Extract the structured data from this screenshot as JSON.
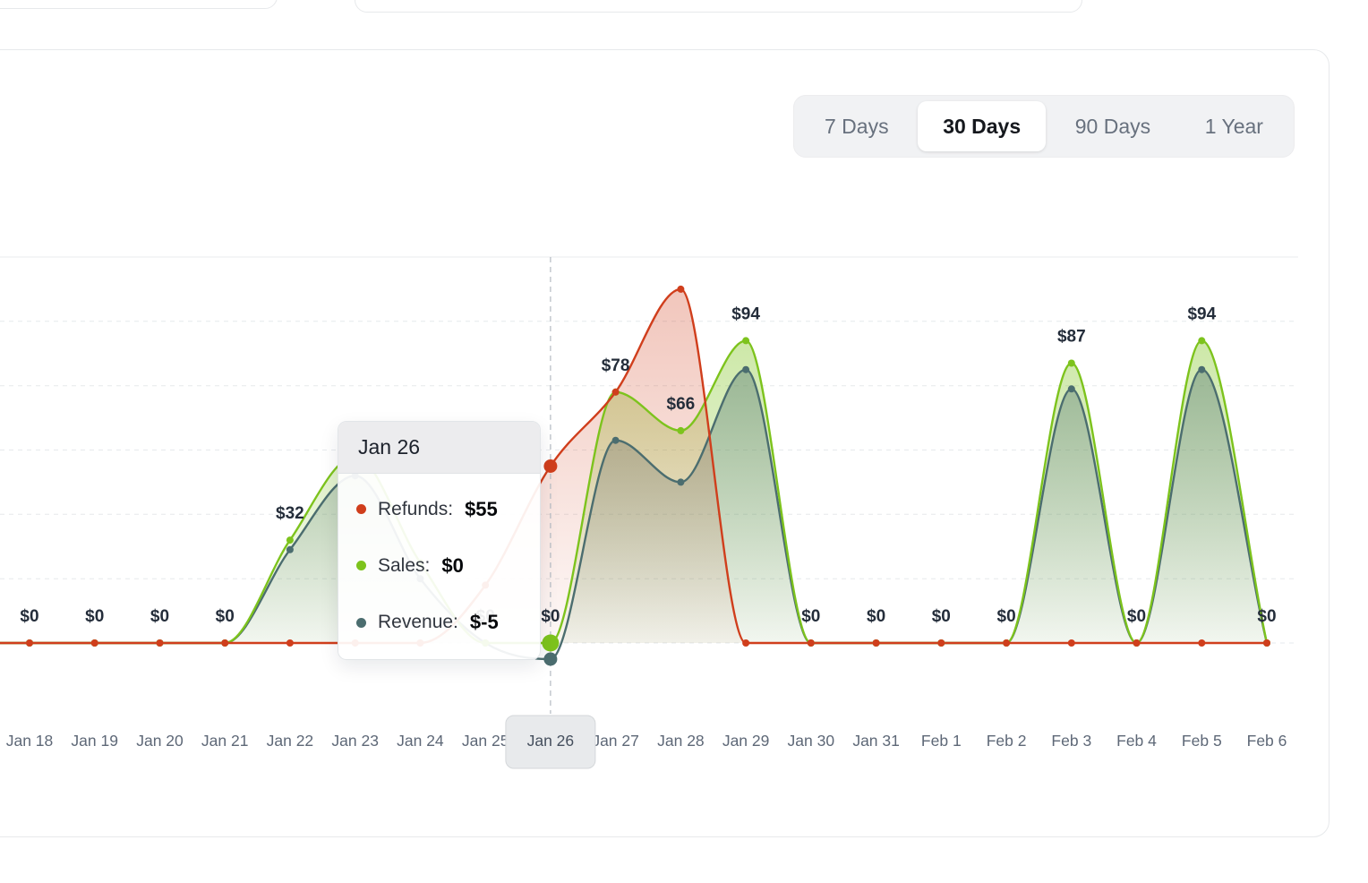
{
  "range_selector": {
    "options": [
      {
        "label": "7 Days",
        "active": false
      },
      {
        "label": "30 Days",
        "active": true
      },
      {
        "label": "90 Days",
        "active": false
      },
      {
        "label": "1 Year",
        "active": false
      }
    ]
  },
  "tooltip": {
    "title": "Jan 26",
    "rows": [
      {
        "name": "refunds",
        "label": "Refunds:",
        "value": "$55",
        "color": "#d03e1c"
      },
      {
        "name": "sales",
        "label": "Sales:",
        "value": "$0",
        "color": "#7dc31d"
      },
      {
        "name": "revenue",
        "label": "Revenue:",
        "value": "$-5",
        "color": "#4b6d6f"
      }
    ]
  },
  "chart_data": {
    "type": "area",
    "x": [
      "Jan 18",
      "Jan 19",
      "Jan 20",
      "Jan 21",
      "Jan 22",
      "Jan 23",
      "Jan 24",
      "Jan 25",
      "Jan 26",
      "Jan 27",
      "Jan 28",
      "Jan 29",
      "Jan 30",
      "Jan 31",
      "Feb 1",
      "Feb 2",
      "Feb 3",
      "Feb 4",
      "Feb 5",
      "Feb 6"
    ],
    "series": [
      {
        "name": "Refunds",
        "color": "#d03e1c",
        "values": [
          0,
          0,
          0,
          0,
          0,
          0,
          0,
          18,
          55,
          78,
          110,
          0,
          0,
          0,
          0,
          0,
          0,
          0,
          0,
          0
        ]
      },
      {
        "name": "Sales",
        "color": "#7dc31d",
        "values": [
          0,
          0,
          0,
          0,
          32,
          58,
          25,
          0,
          0,
          78,
          66,
          94,
          0,
          0,
          0,
          0,
          87,
          0,
          94,
          0
        ]
      },
      {
        "name": "Revenue",
        "color": "#4b6d6f",
        "values": [
          0,
          0,
          0,
          0,
          29,
          52,
          20,
          0,
          -5,
          63,
          50,
          85,
          0,
          0,
          0,
          0,
          79,
          0,
          85,
          0
        ]
      }
    ],
    "point_labels": [
      "$0",
      "$0",
      "$0",
      "$0",
      "$32",
      null,
      null,
      "$0",
      "$0",
      "$78",
      "$66",
      "$94",
      "$0",
      "$0",
      "$0",
      "$0",
      "$87",
      "$0",
      "$94",
      "$0"
    ],
    "highlighted_x_index": 8,
    "highlighted_x": "Jan 26",
    "ylim": [
      -10,
      120
    ],
    "gridlines": [
      0,
      20,
      40,
      60,
      80,
      100,
      120
    ],
    "grid": "dashed-horizontal",
    "legend_position": "tooltip-only"
  }
}
